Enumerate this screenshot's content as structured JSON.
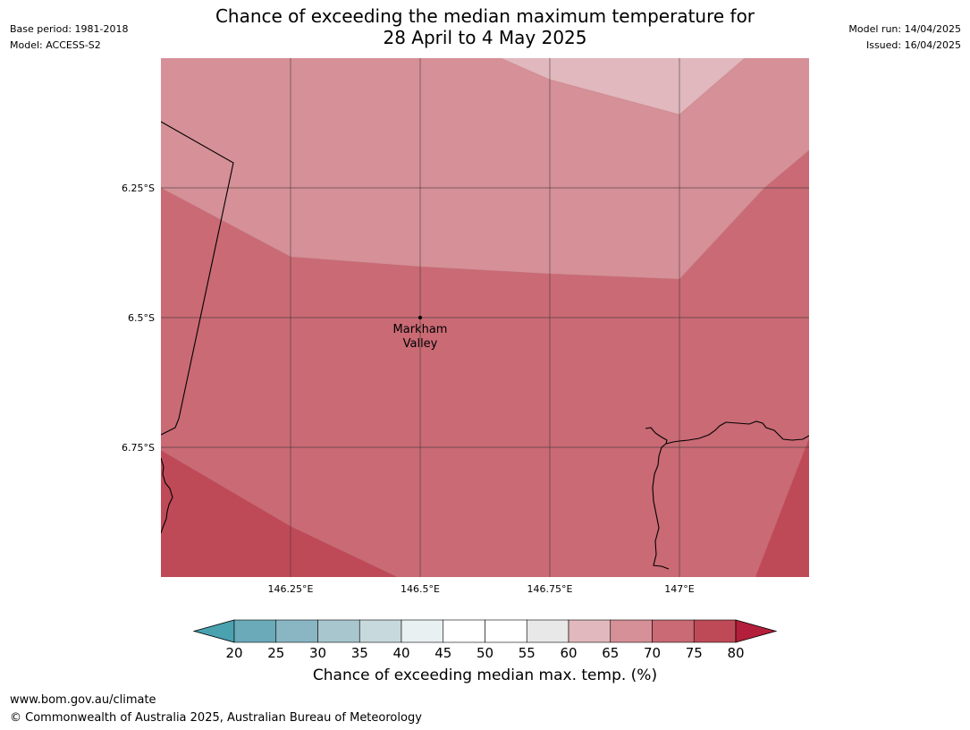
{
  "header": {
    "title_line1": "Chance of exceeding the median maximum temperature for",
    "title_line2": "28 April to 4 May 2025",
    "base_period": "Base period: 1981-2018",
    "model": "Model: ACCESS-S2",
    "model_run": "Model run: 14/04/2025",
    "issued": "Issued: 16/04/2025"
  },
  "map": {
    "lat_labels": [
      {
        "label": "6.25°S",
        "value": -6.25
      },
      {
        "label": "6.5°S",
        "value": -6.5
      },
      {
        "label": "6.75°S",
        "value": -6.75
      }
    ],
    "lon_labels": [
      {
        "label": "146.25°E",
        "value": 146.25
      },
      {
        "label": "146.5°E",
        "value": 146.5
      },
      {
        "label": "146.75°E",
        "value": 146.75
      },
      {
        "label": "147°E",
        "value": 147.0
      }
    ],
    "extent": {
      "lon_min": 146.0,
      "lon_max": 147.25,
      "lat_max": -6.0,
      "lat_min": -7.0
    },
    "location": {
      "name_line1": "Markham",
      "name_line2": "Valley",
      "lon": 146.5,
      "lat": -6.5
    },
    "band_colors": {
      "55-60": "#e8e8e8",
      "60-65": "#e0b8bd",
      "65-70": "#d69097",
      "70-75": "#c96a74",
      "75-80": "#bf4a57"
    }
  },
  "colorbar": {
    "label": "Chance of exceeding median max. temp. (%)",
    "ticks": [
      "20",
      "25",
      "30",
      "35",
      "40",
      "45",
      "50",
      "55",
      "60",
      "65",
      "70",
      "75",
      "80"
    ],
    "under_color": "#4aa1b0",
    "over_color": "#b31e3a",
    "bin_colors": [
      "#6aaab9",
      "#8ab6c4",
      "#a8c6cd",
      "#c8d9dd",
      "#e9f0f2",
      "#ffffff",
      "#ffffff",
      "#e8e8e8",
      "#e0b8bd",
      "#d69097",
      "#c96a74",
      "#bf4a57"
    ]
  },
  "footer": {
    "url": "www.bom.gov.au/climate",
    "copyright": "© Commonwealth of Australia 2025, Australian Bureau of Meteorology"
  }
}
